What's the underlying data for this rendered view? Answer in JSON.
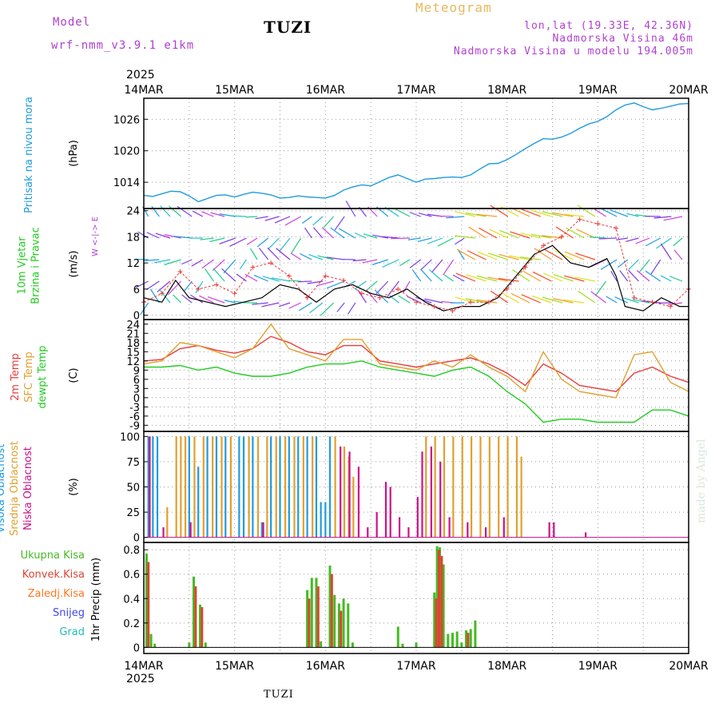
{
  "header": {
    "model_label": "Model",
    "model_name": "wrf-nmm_v3.9.1  e1km",
    "title": "TUZI",
    "meteogram": "Meteogram",
    "lonlat": "lon,lat (19.33E, 42.36N)",
    "elev": "Nadmorska Visina 46m",
    "elev_model": "Nadmorska Visina u modelu 194.005m",
    "footer": "TUZI",
    "credit": "made by Angel",
    "year": "2025"
  },
  "colors": {
    "pressure": "#1e9be0",
    "t2m": "#e83c3c",
    "tsfc": "#e0a030",
    "dewpt": "#22cc22",
    "high_cloud": "#1e9be0",
    "mid_cloud": "#e0a030",
    "low_cloud": "#cc1188",
    "total_precip": "#44bb22",
    "conv_precip": "#dd4433",
    "frz_precip": "#ff7722",
    "snow": "#4444ee",
    "graupel": "#22bbbb",
    "purple_header": "#b040d0",
    "orange_header": "#e8b860"
  },
  "chart_data": {
    "type": "meteogram",
    "x_ticks": [
      "14MAR",
      "15MAR",
      "16MAR",
      "17MAR",
      "18MAR",
      "19MAR",
      "20MAR"
    ],
    "x_range_days": [
      0,
      6
    ],
    "panels": [
      {
        "id": "pressure",
        "type": "line",
        "ylabel_lines": [
          "Pritisak na nivou mora"
        ],
        "unit": "(hPa)",
        "y_ticks": [
          1014,
          1020,
          1026
        ],
        "ylim": [
          1009,
          1030
        ],
        "series": [
          {
            "color_key": "pressure",
            "x": [
              0,
              0.1,
              0.2,
              0.3,
              0.4,
              0.5,
              0.6,
              0.7,
              0.8,
              0.9,
              1.0,
              1.1,
              1.2,
              1.3,
              1.4,
              1.5,
              1.6,
              1.7,
              1.8,
              1.9,
              2.0,
              2.1,
              2.2,
              2.3,
              2.4,
              2.5,
              2.6,
              2.7,
              2.8,
              2.9,
              3.0,
              3.1,
              3.2,
              3.3,
              3.4,
              3.5,
              3.6,
              3.7,
              3.8,
              3.9,
              4.0,
              4.1,
              4.2,
              4.3,
              4.4,
              4.5,
              4.6,
              4.7,
              4.8,
              4.9,
              5.0,
              5.1,
              5.2,
              5.3,
              5.4,
              5.5,
              5.6,
              5.7,
              5.8,
              5.9,
              6.0
            ],
            "y": [
              1011.5,
              1011.3,
              1011.8,
              1012.3,
              1012.2,
              1011.4,
              1010.3,
              1010.9,
              1011.5,
              1011.6,
              1011.2,
              1011.7,
              1012.1,
              1011.9,
              1011.6,
              1011.0,
              1011.1,
              1011.4,
              1011.2,
              1011.1,
              1011.0,
              1011.5,
              1012.5,
              1013.1,
              1013.5,
              1013.3,
              1014.1,
              1014.9,
              1015.4,
              1014.7,
              1014.0,
              1014.6,
              1014.7,
              1014.9,
              1015.0,
              1014.9,
              1015.4,
              1016.5,
              1017.5,
              1017.6,
              1018.3,
              1019.3,
              1020.4,
              1021.4,
              1022.3,
              1022.2,
              1022.6,
              1023.3,
              1024.3,
              1025.1,
              1025.6,
              1026.5,
              1027.8,
              1028.7,
              1029.1,
              1028.4,
              1027.8,
              1028.1,
              1028.5,
              1028.9,
              1029.0
            ]
          }
        ]
      },
      {
        "id": "wind",
        "type": "vector_scatter",
        "ylabel_lines": [
          "10m Vjetar",
          "Brzina i Pravac"
        ],
        "unit": "(m/s)",
        "y_ticks": [
          0,
          6,
          12,
          18,
          24
        ],
        "ylim": [
          -1,
          24.5
        ],
        "compass": "W <-|-> E",
        "series": [
          {
            "name": "speed",
            "color_key": "ink",
            "x": [
              0,
              0.2,
              0.35,
              0.5,
              0.7,
              0.9,
              1.1,
              1.3,
              1.5,
              1.7,
              1.9,
              2.1,
              2.3,
              2.5,
              2.7,
              2.9,
              3.1,
              3.3,
              3.5,
              3.7,
              3.9,
              4.1,
              4.3,
              4.5,
              4.7,
              4.9,
              5.1,
              5.2,
              5.3,
              5.5,
              5.7,
              5.9,
              6.0
            ],
            "y": [
              4,
              3,
              8,
              4,
              3,
              2,
              3,
              4,
              7,
              6,
              3,
              6,
              7,
              5,
              4,
              6,
              3,
              1,
              2,
              2,
              4,
              9,
              14,
              16,
              12,
              11,
              13,
              9,
              2,
              1,
              4,
              2,
              2
            ]
          },
          {
            "name": "gust",
            "color_key": "t2m",
            "x": [
              0,
              0.2,
              0.4,
              0.6,
              0.8,
              1.0,
              1.2,
              1.4,
              1.6,
              1.8,
              2.0,
              2.2,
              2.4,
              2.6,
              2.8,
              3.0,
              3.2,
              3.4,
              3.6,
              3.8,
              4.0,
              4.2,
              4.4,
              4.6,
              4.8,
              5.0,
              5.2,
              5.4,
              5.6,
              5.8,
              6.0
            ],
            "y": [
              3,
              5,
              10,
              6,
              7,
              5,
              11,
              12,
              9,
              4,
              9,
              8,
              5,
              4,
              6,
              3,
              2,
              1,
              3,
              3,
              6,
              11,
              16,
              18,
              22,
              21,
              20,
              4,
              3,
              2,
              6
            ]
          }
        ]
      },
      {
        "id": "temperature",
        "type": "line",
        "ylabel_lines": [
          "2m Temp",
          "SFC Temp",
          "dewpt Temp"
        ],
        "unit": "(C)",
        "y_ticks": [
          -9,
          -6,
          -3,
          0,
          3,
          6,
          9,
          12,
          15,
          18,
          21,
          24
        ],
        "ylim": [
          -11,
          25.5
        ],
        "series": [
          {
            "name": "2m Temp",
            "color_key": "t2m",
            "x": [
              0,
              0.2,
              0.4,
              0.6,
              0.8,
              1.0,
              1.2,
              1.4,
              1.6,
              1.8,
              2.0,
              2.2,
              2.4,
              2.6,
              2.8,
              3.0,
              3.2,
              3.4,
              3.6,
              3.8,
              4.0,
              4.2,
              4.4,
              4.6,
              4.8,
              5.0,
              5.2,
              5.4,
              5.6,
              5.8,
              6.0
            ],
            "y": [
              12,
              12.5,
              16,
              17,
              15.5,
              14.5,
              16,
              20,
              18,
              15,
              14,
              17,
              17,
              12,
              11,
              10,
              11,
              12,
              13,
              11,
              8,
              4,
              11,
              8,
              4,
              3,
              2,
              8,
              10,
              7,
              5
            ]
          },
          {
            "name": "SFC Temp",
            "color_key": "tsfc",
            "x": [
              0,
              0.2,
              0.4,
              0.6,
              0.8,
              1.0,
              1.2,
              1.4,
              1.6,
              1.8,
              2.0,
              2.2,
              2.4,
              2.6,
              2.8,
              3.0,
              3.2,
              3.4,
              3.6,
              3.8,
              4.0,
              4.2,
              4.4,
              4.6,
              4.8,
              5.0,
              5.2,
              5.4,
              5.6,
              5.8,
              6.0
            ],
            "y": [
              11,
              12,
              18,
              17,
              15,
              13,
              16,
              24,
              16,
              14,
              12,
              19,
              19,
              11,
              10,
              9,
              12,
              10,
              14,
              10,
              7,
              2,
              15,
              6,
              2,
              1,
              0,
              14,
              15,
              5,
              2
            ]
          },
          {
            "name": "dewpt Temp",
            "color_key": "dewpt",
            "x": [
              0,
              0.2,
              0.4,
              0.6,
              0.8,
              1.0,
              1.2,
              1.4,
              1.6,
              1.8,
              2.0,
              2.2,
              2.4,
              2.6,
              2.8,
              3.0,
              3.2,
              3.4,
              3.6,
              3.8,
              4.0,
              4.2,
              4.4,
              4.6,
              4.8,
              5.0,
              5.2,
              5.4,
              5.6,
              5.8,
              6.0
            ],
            "y": [
              10,
              10,
              10.5,
              9,
              10,
              8,
              7,
              7,
              8,
              10,
              11,
              11,
              12,
              10,
              9,
              8,
              7,
              9,
              10,
              7,
              2,
              -2,
              -8,
              -7,
              -7,
              -8,
              -8,
              -8,
              -4,
              -4,
              -6
            ]
          }
        ]
      },
      {
        "id": "cloud",
        "type": "bar",
        "ylabel_lines": [
          "Visoka Oblacnost",
          "Srednja Oblacnost",
          "Niska Oblacnost"
        ],
        "unit": "(%)",
        "y_ticks": [
          0,
          25,
          50,
          75,
          100
        ],
        "ylim": [
          -5,
          105
        ],
        "series": [
          {
            "name": "Visoka Oblacnost",
            "color_key": "high_cloud",
            "x": [
              0.05,
              0.1,
              0.15,
              0.5,
              0.6,
              0.7,
              0.8,
              0.9,
              1.05,
              1.1,
              1.2,
              1.3,
              1.4,
              1.5,
              1.6,
              1.7,
              1.8,
              1.9,
              1.95,
              2.0,
              2.05
            ],
            "y": [
              100,
              100,
              100,
              100,
              70,
              100,
              100,
              100,
              100,
              100,
              100,
              15,
              100,
              100,
              100,
              100,
              100,
              100,
              35,
              35,
              100
            ]
          },
          {
            "name": "Srednja Oblacnost",
            "color_key": "mid_cloud",
            "x": [
              0.25,
              0.35,
              0.4,
              0.45,
              0.55,
              0.65,
              0.75,
              0.85,
              0.95,
              1.15,
              1.25,
              1.35,
              1.45,
              1.55,
              1.65,
              1.75,
              1.85,
              2.1,
              2.2,
              2.25,
              2.3,
              3.1,
              3.2,
              3.3,
              3.4,
              3.5,
              3.6,
              3.7,
              3.8,
              3.9,
              4.0,
              4.1,
              4.15
            ],
            "y": [
              30,
              100,
              100,
              100,
              100,
              100,
              100,
              100,
              100,
              100,
              100,
              100,
              100,
              100,
              100,
              100,
              100,
              100,
              90,
              80,
              60,
              100,
              100,
              100,
              100,
              100,
              100,
              100,
              100,
              100,
              100,
              100,
              80
            ]
          },
          {
            "name": "Niska Oblacnost",
            "color_key": "low_cloud",
            "x": [
              0.05,
              0.2,
              0.5,
              1.3,
              2.15,
              2.25,
              2.35,
              2.45,
              2.55,
              2.65,
              2.7,
              2.8,
              2.9,
              3.0,
              3.05,
              3.15,
              3.25,
              3.35,
              3.55,
              3.75,
              3.95,
              4.45,
              4.5,
              4.85
            ],
            "y": [
              100,
              10,
              15,
              15,
              90,
              85,
              70,
              10,
              25,
              55,
              50,
              20,
              10,
              40,
              85,
              90,
              75,
              20,
              15,
              10,
              20,
              15,
              15,
              5
            ]
          }
        ]
      },
      {
        "id": "precip",
        "type": "bar",
        "ylabel_lines": [
          "1hr Precip (mm)"
        ],
        "unit": "",
        "y_ticks": [
          0,
          0.2,
          0.4,
          0.6,
          0.8
        ],
        "ylim": [
          -0.05,
          0.86
        ],
        "legend": [
          "Ukupna Kisa",
          "Konvek.Kisa",
          "Zaledj.Kisa",
          "Snijeg",
          "Grad"
        ],
        "series": [
          {
            "name": "Ukupna Kisa",
            "color_key": "total_precip",
            "x": [
              0.03,
              0.08,
              0.12,
              0.5,
              0.55,
              0.62,
              0.68,
              1.8,
              1.85,
              1.9,
              1.95,
              2.05,
              2.1,
              2.15,
              2.2,
              2.25,
              2.3,
              2.8,
              2.85,
              3.0,
              3.2,
              3.23,
              3.26,
              3.3,
              3.35,
              3.4,
              3.45,
              3.5,
              3.55,
              3.6,
              3.65
            ],
            "y": [
              0.77,
              0.11,
              0.03,
              0.04,
              0.58,
              0.35,
              0.04,
              0.47,
              0.57,
              0.57,
              0.05,
              0.67,
              0.43,
              0.36,
              0.4,
              0.36,
              0.04,
              0.17,
              0.03,
              0.04,
              0.45,
              0.83,
              0.82,
              0.68,
              0.11,
              0.12,
              0.13,
              0.04,
              0.14,
              0.15,
              0.22
            ]
          },
          {
            "name": "Konvek.Kisa",
            "color_key": "conv_precip",
            "x": [
              0.04,
              0.56,
              0.63,
              1.81,
              1.91,
              2.06,
              2.16,
              3.21,
              3.24,
              3.27,
              3.56
            ],
            "y": [
              0.7,
              0.5,
              0.33,
              0.4,
              0.5,
              0.6,
              0.3,
              0.4,
              0.8,
              0.75,
              0.12
            ]
          }
        ]
      }
    ]
  }
}
